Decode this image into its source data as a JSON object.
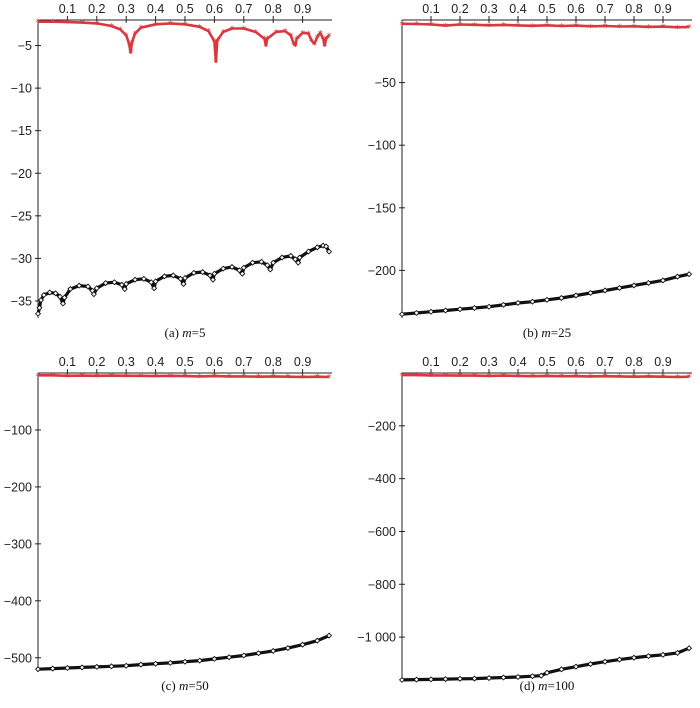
{
  "chart_data": [
    {
      "type": "scatter",
      "caption_prefix": "(a) ",
      "caption_var": "m",
      "caption_suffix": "=5",
      "xlim": [
        0,
        1
      ],
      "ylim": [
        -37,
        -2
      ],
      "xticks": [
        0.1,
        0.2,
        0.3,
        0.4,
        0.5,
        0.6,
        0.7,
        0.8,
        0.9
      ],
      "xtick_labels": [
        "0.1",
        "0.2",
        "0.3",
        "0.4",
        "0.5",
        "0.6",
        "0.7",
        "0.8",
        "0.9"
      ],
      "yticks": [
        -5,
        -10,
        -15,
        -20,
        -25,
        -30,
        -35
      ],
      "ytick_labels": [
        "-5",
        "-10",
        "-15",
        "-20",
        "-25",
        "-30",
        "-35"
      ],
      "grid": false,
      "series": [
        {
          "marker": "star",
          "color": "#d9393e",
          "points": [
            [
              0.0,
              -2.2
            ],
            [
              0.05,
              -2.2
            ],
            [
              0.1,
              -2.25
            ],
            [
              0.15,
              -2.3
            ],
            [
              0.2,
              -2.4
            ],
            [
              0.25,
              -2.7
            ],
            [
              0.28,
              -3.1
            ],
            [
              0.3,
              -3.8
            ],
            [
              0.31,
              -4.8
            ],
            [
              0.315,
              -5.8
            ],
            [
              0.32,
              -4.6
            ],
            [
              0.33,
              -3.6
            ],
            [
              0.35,
              -2.9
            ],
            [
              0.4,
              -2.5
            ],
            [
              0.45,
              -2.4
            ],
            [
              0.5,
              -2.5
            ],
            [
              0.55,
              -2.8
            ],
            [
              0.58,
              -3.3
            ],
            [
              0.6,
              -4.5
            ],
            [
              0.605,
              -6.9
            ],
            [
              0.61,
              -4.4
            ],
            [
              0.63,
              -3.4
            ],
            [
              0.66,
              -3.0
            ],
            [
              0.7,
              -3.0
            ],
            [
              0.74,
              -3.4
            ],
            [
              0.77,
              -4.2
            ],
            [
              0.775,
              -5.0
            ],
            [
              0.78,
              -4.2
            ],
            [
              0.81,
              -3.4
            ],
            [
              0.84,
              -3.3
            ],
            [
              0.86,
              -3.8
            ],
            [
              0.87,
              -4.8
            ],
            [
              0.875,
              -5.0
            ],
            [
              0.88,
              -4.2
            ],
            [
              0.9,
              -3.5
            ],
            [
              0.92,
              -3.6
            ],
            [
              0.93,
              -4.4
            ],
            [
              0.94,
              -4.8
            ],
            [
              0.95,
              -4.0
            ],
            [
              0.96,
              -3.5
            ],
            [
              0.97,
              -4.2
            ],
            [
              0.975,
              -5.0
            ],
            [
              0.98,
              -4.2
            ],
            [
              0.99,
              -3.8
            ]
          ]
        },
        {
          "marker": "diamond",
          "color": "#111111",
          "points": [
            [
              0.0,
              -36.5
            ],
            [
              0.005,
              -35.8
            ],
            [
              0.01,
              -34.9
            ],
            [
              0.02,
              -34.3
            ],
            [
              0.04,
              -34.0
            ],
            [
              0.06,
              -34.1
            ],
            [
              0.075,
              -34.5
            ],
            [
              0.085,
              -35.3
            ],
            [
              0.09,
              -34.6
            ],
            [
              0.11,
              -33.6
            ],
            [
              0.14,
              -33.2
            ],
            [
              0.17,
              -33.3
            ],
            [
              0.185,
              -33.8
            ],
            [
              0.19,
              -34.2
            ],
            [
              0.2,
              -33.5
            ],
            [
              0.23,
              -32.9
            ],
            [
              0.26,
              -32.8
            ],
            [
              0.285,
              -33.1
            ],
            [
              0.295,
              -33.6
            ],
            [
              0.3,
              -33.0
            ],
            [
              0.33,
              -32.5
            ],
            [
              0.36,
              -32.4
            ],
            [
              0.385,
              -32.8
            ],
            [
              0.395,
              -33.5
            ],
            [
              0.4,
              -32.7
            ],
            [
              0.43,
              -32.1
            ],
            [
              0.46,
              -32.0
            ],
            [
              0.485,
              -32.4
            ],
            [
              0.495,
              -33.0
            ],
            [
              0.5,
              -32.3
            ],
            [
              0.53,
              -31.7
            ],
            [
              0.56,
              -31.6
            ],
            [
              0.585,
              -32.0
            ],
            [
              0.595,
              -32.5
            ],
            [
              0.6,
              -31.8
            ],
            [
              0.63,
              -31.2
            ],
            [
              0.66,
              -31.0
            ],
            [
              0.685,
              -31.4
            ],
            [
              0.695,
              -31.8
            ],
            [
              0.7,
              -31.1
            ],
            [
              0.73,
              -30.5
            ],
            [
              0.76,
              -30.4
            ],
            [
              0.78,
              -30.8
            ],
            [
              0.79,
              -31.3
            ],
            [
              0.8,
              -30.5
            ],
            [
              0.83,
              -29.9
            ],
            [
              0.86,
              -29.7
            ],
            [
              0.875,
              -30.1
            ],
            [
              0.885,
              -30.5
            ],
            [
              0.89,
              -29.9
            ],
            [
              0.92,
              -29.2
            ],
            [
              0.95,
              -28.7
            ],
            [
              0.97,
              -28.5
            ],
            [
              0.98,
              -28.6
            ],
            [
              0.99,
              -29.2
            ]
          ]
        }
      ]
    },
    {
      "type": "scatter",
      "caption_prefix": "(b) ",
      "caption_var": "m",
      "caption_suffix": "=25",
      "xlim": [
        0,
        1
      ],
      "ylim": [
        -238,
        0
      ],
      "xticks": [
        0.1,
        0.2,
        0.3,
        0.4,
        0.5,
        0.6,
        0.7,
        0.8,
        0.9
      ],
      "xtick_labels": [
        "0.1",
        "0.2",
        "0.3",
        "0.4",
        "0.5",
        "0.6",
        "0.7",
        "0.8",
        "0.9"
      ],
      "yticks": [
        -50,
        -100,
        -150,
        -200
      ],
      "ytick_labels": [
        "-50",
        "-100",
        "-150",
        "-200"
      ],
      "grid": false,
      "series": [
        {
          "marker": "star",
          "color": "#d9393e",
          "points": [
            [
              0.0,
              -3
            ],
            [
              0.05,
              -3.2
            ],
            [
              0.1,
              -3.5
            ],
            [
              0.15,
              -4.5
            ],
            [
              0.2,
              -3.6
            ],
            [
              0.25,
              -3.8
            ],
            [
              0.3,
              -4.2
            ],
            [
              0.35,
              -3.9
            ],
            [
              0.4,
              -4.3
            ],
            [
              0.45,
              -4.6
            ],
            [
              0.5,
              -4.2
            ],
            [
              0.55,
              -4.8
            ],
            [
              0.6,
              -4.5
            ],
            [
              0.65,
              -5.0
            ],
            [
              0.7,
              -4.8
            ],
            [
              0.75,
              -5.2
            ],
            [
              0.8,
              -5.0
            ],
            [
              0.85,
              -5.5
            ],
            [
              0.9,
              -5.3
            ],
            [
              0.95,
              -5.8
            ],
            [
              0.99,
              -5.5
            ]
          ]
        },
        {
          "marker": "diamond",
          "color": "#111111",
          "points": [
            [
              0.0,
              -235
            ],
            [
              0.05,
              -234
            ],
            [
              0.1,
              -233
            ],
            [
              0.15,
              -232
            ],
            [
              0.2,
              -231
            ],
            [
              0.25,
              -230
            ],
            [
              0.3,
              -229
            ],
            [
              0.35,
              -227.5
            ],
            [
              0.4,
              -226
            ],
            [
              0.45,
              -225
            ],
            [
              0.5,
              -223.5
            ],
            [
              0.55,
              -222
            ],
            [
              0.6,
              -220
            ],
            [
              0.65,
              -218
            ],
            [
              0.7,
              -216
            ],
            [
              0.75,
              -214
            ],
            [
              0.8,
              -212
            ],
            [
              0.85,
              -210
            ],
            [
              0.9,
              -208
            ],
            [
              0.95,
              -205
            ],
            [
              0.99,
              -203
            ]
          ]
        }
      ]
    },
    {
      "type": "scatter",
      "caption_prefix": "(c) ",
      "caption_var": "m",
      "caption_suffix": "=50",
      "xlim": [
        0,
        1
      ],
      "ylim": [
        -525,
        0
      ],
      "xticks": [
        0.1,
        0.2,
        0.3,
        0.4,
        0.5,
        0.6,
        0.7,
        0.8,
        0.9
      ],
      "xtick_labels": [
        "0.1",
        "0.2",
        "0.3",
        "0.4",
        "0.5",
        "0.6",
        "0.7",
        "0.8",
        "0.9"
      ],
      "yticks": [
        -100,
        -200,
        -300,
        -400,
        -500
      ],
      "ytick_labels": [
        "-100",
        "-200",
        "-300",
        "-400",
        "-500"
      ],
      "grid": false,
      "series": [
        {
          "marker": "star",
          "color": "#d9393e",
          "points": [
            [
              0.0,
              -4
            ],
            [
              0.05,
              -4
            ],
            [
              0.1,
              -5
            ],
            [
              0.15,
              -4.5
            ],
            [
              0.2,
              -5
            ],
            [
              0.25,
              -4.5
            ],
            [
              0.3,
              -5
            ],
            [
              0.35,
              -5
            ],
            [
              0.4,
              -5.5
            ],
            [
              0.45,
              -5
            ],
            [
              0.5,
              -5.5
            ],
            [
              0.55,
              -6
            ],
            [
              0.6,
              -5.5
            ],
            [
              0.65,
              -6
            ],
            [
              0.7,
              -6
            ],
            [
              0.75,
              -6.5
            ],
            [
              0.8,
              -6
            ],
            [
              0.85,
              -6.5
            ],
            [
              0.9,
              -7
            ],
            [
              0.95,
              -6.5
            ],
            [
              0.99,
              -7
            ]
          ]
        },
        {
          "marker": "diamond",
          "color": "#111111",
          "points": [
            [
              0.0,
              -520
            ],
            [
              0.05,
              -519
            ],
            [
              0.1,
              -518
            ],
            [
              0.15,
              -517
            ],
            [
              0.2,
              -516
            ],
            [
              0.25,
              -515
            ],
            [
              0.3,
              -514
            ],
            [
              0.35,
              -512
            ],
            [
              0.4,
              -510.5
            ],
            [
              0.45,
              -509
            ],
            [
              0.5,
              -507
            ],
            [
              0.55,
              -505
            ],
            [
              0.6,
              -502
            ],
            [
              0.65,
              -499
            ],
            [
              0.7,
              -496
            ],
            [
              0.75,
              -492
            ],
            [
              0.8,
              -488
            ],
            [
              0.85,
              -483
            ],
            [
              0.9,
              -477
            ],
            [
              0.95,
              -470
            ],
            [
              0.99,
              -461
            ]
          ]
        }
      ]
    },
    {
      "type": "scatter",
      "caption_prefix": "(d) ",
      "caption_var": "m",
      "caption_suffix": "=100",
      "xlim": [
        0,
        1
      ],
      "ylim": [
        -1170,
        0
      ],
      "xticks": [
        0.1,
        0.2,
        0.3,
        0.4,
        0.5,
        0.6,
        0.7,
        0.8,
        0.9
      ],
      "xtick_labels": [
        "0.1",
        "0.2",
        "0.3",
        "0.4",
        "0.5",
        "0.6",
        "0.7",
        "0.8",
        "0.9"
      ],
      "yticks": [
        -200,
        -400,
        -600,
        -800,
        -1000
      ],
      "ytick_labels": [
        "-200",
        "-400",
        "-600",
        "-800",
        "-1 000"
      ],
      "grid": false,
      "series": [
        {
          "marker": "star",
          "color": "#d9393e",
          "points": [
            [
              0.0,
              -8
            ],
            [
              0.05,
              -8
            ],
            [
              0.1,
              -9
            ],
            [
              0.15,
              -9
            ],
            [
              0.2,
              -10
            ],
            [
              0.25,
              -10
            ],
            [
              0.3,
              -11
            ],
            [
              0.35,
              -10
            ],
            [
              0.4,
              -11
            ],
            [
              0.45,
              -12
            ],
            [
              0.5,
              -11
            ],
            [
              0.55,
              -12
            ],
            [
              0.6,
              -12
            ],
            [
              0.65,
              -13
            ],
            [
              0.7,
              -12
            ],
            [
              0.75,
              -13
            ],
            [
              0.8,
              -14
            ],
            [
              0.85,
              -13
            ],
            [
              0.9,
              -14
            ],
            [
              0.95,
              -15
            ],
            [
              0.99,
              -14
            ]
          ]
        },
        {
          "marker": "diamond",
          "color": "#111111",
          "points": [
            [
              0.0,
              -1162
            ],
            [
              0.05,
              -1161
            ],
            [
              0.1,
              -1160
            ],
            [
              0.15,
              -1159
            ],
            [
              0.2,
              -1158
            ],
            [
              0.25,
              -1157
            ],
            [
              0.3,
              -1155
            ],
            [
              0.35,
              -1153
            ],
            [
              0.4,
              -1151
            ],
            [
              0.45,
              -1148
            ],
            [
              0.48,
              -1146
            ],
            [
              0.5,
              -1135
            ],
            [
              0.55,
              -1122
            ],
            [
              0.6,
              -1112
            ],
            [
              0.65,
              -1102
            ],
            [
              0.7,
              -1093
            ],
            [
              0.75,
              -1085
            ],
            [
              0.8,
              -1078
            ],
            [
              0.85,
              -1072
            ],
            [
              0.9,
              -1067
            ],
            [
              0.95,
              -1060
            ],
            [
              0.99,
              -1042
            ]
          ]
        }
      ]
    }
  ]
}
